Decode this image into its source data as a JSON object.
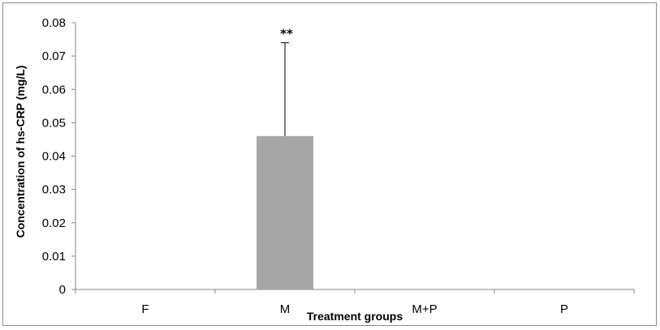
{
  "chart_data": {
    "type": "bar",
    "title": "",
    "xlabel": "Treatment groups",
    "ylabel": "Concentration of hs-CRP (mg/L)",
    "categories": [
      "F",
      "M",
      "M+P",
      "P"
    ],
    "values": [
      0,
      0.046,
      0,
      0
    ],
    "error_upper": [
      0,
      0.028,
      0,
      0
    ],
    "annotations": [
      "",
      "**",
      "",
      ""
    ],
    "ylim": [
      0,
      0.08
    ],
    "yticks": [
      "0",
      "0.01",
      "0.02",
      "0.03",
      "0.04",
      "0.05",
      "0.06",
      "0.07",
      "0.08"
    ],
    "ytick_values": [
      0,
      0.01,
      0.02,
      0.03,
      0.04,
      0.05,
      0.06,
      0.07,
      0.08
    ],
    "bar_color": "#a6a6a6",
    "grid": false,
    "legend": "none"
  }
}
